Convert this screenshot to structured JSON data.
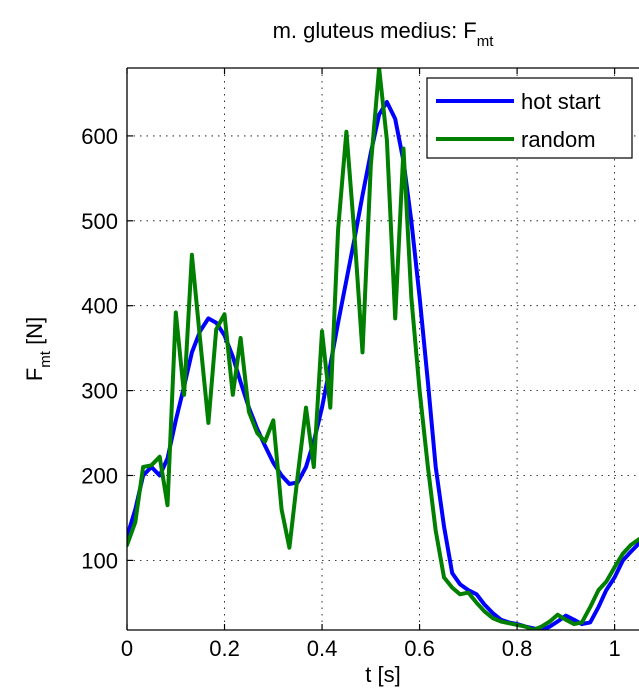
{
  "chart_data": {
    "type": "line",
    "title": {
      "main": "m. gluteus medius: F",
      "subscript": "mt"
    },
    "xlabel": "t  [s]",
    "ylabel": {
      "main": "F",
      "subscript": "mt",
      "unit": "  [N]"
    },
    "xlim": [
      0,
      1.05
    ],
    "ylim": [
      18,
      680
    ],
    "xticks": [
      0,
      0.2,
      0.4,
      0.6,
      0.8,
      1
    ],
    "xtick_labels": [
      "0",
      "0.2",
      "0.4",
      "0.6",
      "0.8",
      "1"
    ],
    "yticks": [
      100,
      200,
      300,
      400,
      500,
      600
    ],
    "ytick_labels": [
      "100",
      "200",
      "300",
      "400",
      "500",
      "600"
    ],
    "grid": true,
    "legend_position": "top-right",
    "series": [
      {
        "name": "hot start",
        "color": "#0000ff",
        "x": [
          0,
          0.017,
          0.033,
          0.05,
          0.067,
          0.083,
          0.1,
          0.117,
          0.133,
          0.15,
          0.167,
          0.183,
          0.2,
          0.217,
          0.233,
          0.25,
          0.267,
          0.283,
          0.3,
          0.317,
          0.333,
          0.35,
          0.367,
          0.383,
          0.4,
          0.417,
          0.433,
          0.45,
          0.467,
          0.483,
          0.5,
          0.517,
          0.533,
          0.55,
          0.567,
          0.583,
          0.6,
          0.617,
          0.633,
          0.65,
          0.667,
          0.683,
          0.7,
          0.717,
          0.733,
          0.75,
          0.767,
          0.783,
          0.8,
          0.817,
          0.833,
          0.85,
          0.867,
          0.883,
          0.9,
          0.917,
          0.933,
          0.95,
          0.967,
          0.983,
          1.0,
          1.017,
          1.033,
          1.05
        ],
        "y": [
          128,
          160,
          200,
          210,
          200,
          220,
          265,
          305,
          345,
          370,
          385,
          380,
          365,
          340,
          310,
          280,
          255,
          235,
          215,
          200,
          190,
          192,
          210,
          240,
          280,
          330,
          380,
          430,
          480,
          530,
          580,
          625,
          640,
          620,
          570,
          500,
          410,
          310,
          210,
          140,
          85,
          72,
          65,
          60,
          48,
          38,
          30,
          27,
          25,
          22,
          20,
          18,
          22,
          28,
          35,
          30,
          25,
          27,
          45,
          65,
          80,
          100,
          110,
          120
        ]
      },
      {
        "name": "random",
        "color": "#007f00",
        "x": [
          0,
          0.017,
          0.033,
          0.05,
          0.067,
          0.083,
          0.1,
          0.117,
          0.133,
          0.15,
          0.167,
          0.183,
          0.2,
          0.217,
          0.233,
          0.25,
          0.267,
          0.283,
          0.3,
          0.317,
          0.333,
          0.35,
          0.367,
          0.383,
          0.4,
          0.417,
          0.433,
          0.45,
          0.467,
          0.483,
          0.5,
          0.517,
          0.533,
          0.55,
          0.567,
          0.583,
          0.6,
          0.617,
          0.633,
          0.65,
          0.667,
          0.683,
          0.7,
          0.717,
          0.733,
          0.75,
          0.767,
          0.783,
          0.8,
          0.817,
          0.833,
          0.85,
          0.867,
          0.883,
          0.9,
          0.917,
          0.933,
          0.95,
          0.967,
          0.983,
          1.0,
          1.017,
          1.033,
          1.05
        ],
        "y": [
          118,
          145,
          210,
          212,
          222,
          165,
          392,
          295,
          460,
          360,
          262,
          372,
          390,
          295,
          362,
          275,
          250,
          240,
          265,
          160,
          115,
          200,
          280,
          210,
          370,
          280,
          490,
          605,
          480,
          345,
          565,
          680,
          595,
          385,
          585,
          410,
          300,
          210,
          135,
          80,
          68,
          60,
          62,
          50,
          40,
          32,
          28,
          26,
          24,
          22,
          18,
          22,
          28,
          36,
          30,
          25,
          27,
          45,
          65,
          75,
          92,
          108,
          118,
          125
        ]
      }
    ]
  }
}
